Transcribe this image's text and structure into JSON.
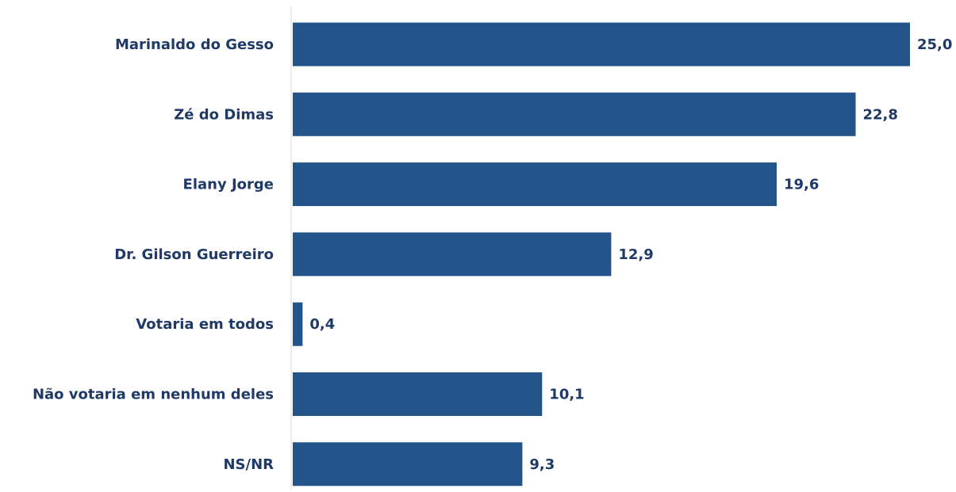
{
  "chart_data": {
    "type": "bar",
    "orientation": "horizontal",
    "categories": [
      "Marinaldo do Gesso",
      "Zé do Dimas",
      "Elany Jorge",
      "Dr. Gilson Guerreiro",
      "Votaria em todos",
      "Não votaria em nenhum deles",
      "NS/NR"
    ],
    "values": [
      25.0,
      22.8,
      19.6,
      12.9,
      0.4,
      10.1,
      9.3
    ],
    "value_labels": [
      "25,0",
      "22,8",
      "19,6",
      "12,9",
      "0,4",
      "10,1",
      "9,3"
    ],
    "xlim": [
      0,
      25
    ],
    "grid": false,
    "colors": {
      "bar": "#22548a",
      "text": "#1f3a66",
      "axis": "#d9d9d9"
    }
  }
}
